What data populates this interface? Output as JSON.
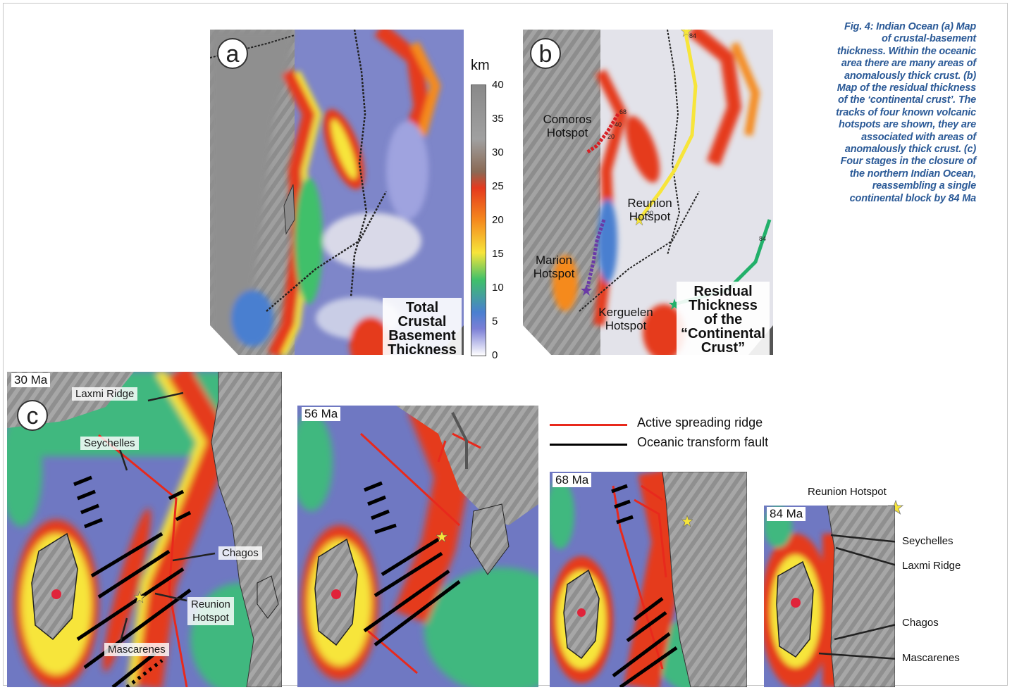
{
  "caption": "Fig. 4: Indian Ocean (a) Map of crustal-basement thickness. Within the oceanic area there are many areas of anomalously thick crust. (b) Map of the residual thickness of the ‘continental crust’. The tracks of four known volcanic hotspots are shown, they are associated with areas of anomalously thick crust. (c) Four stages in the closure of the northern Indian Ocean, reassembling a single continental block by 84 Ma",
  "panel_a": {
    "letter": "a",
    "label_lines": [
      "Total",
      "Crustal",
      "Basement",
      "Thickness"
    ]
  },
  "colorbar": {
    "unit": "km",
    "ticks": [
      "40",
      "35",
      "30",
      "25",
      "20",
      "15",
      "10",
      "5",
      "0"
    ],
    "colors": [
      "#8a8a8a",
      "#a0a0a0",
      "#8a6a55",
      "#e53a1e",
      "#f58a1e",
      "#f7e53a",
      "#3fc06a",
      "#4a7fd0",
      "#7b7fd6",
      "#ffffff"
    ]
  },
  "panel_b": {
    "letter": "b",
    "hotspots": {
      "comoros": [
        "Comoros",
        "Hotspot"
      ],
      "reunion": [
        "Reunion",
        "Hotspot"
      ],
      "marion": [
        "Marion",
        "Hotspot"
      ],
      "kerguelen": [
        "Kerguelen",
        "Hotspot"
      ]
    },
    "label_lines": [
      "Residual",
      "Thickness",
      "of the",
      "“Continental",
      "Crust”"
    ],
    "track_ticks": [
      "84",
      "68",
      "40",
      "20",
      "20",
      "84"
    ]
  },
  "panel_c": {
    "letter": "c",
    "stages": [
      "30 Ma",
      "56 Ma",
      "68 Ma",
      "84 Ma"
    ],
    "labels_30": {
      "laxmi": "Laxmi Ridge",
      "seychelles": "Seychelles",
      "chagos": "Chagos",
      "reunion": [
        "Reunion",
        "Hotspot"
      ],
      "mascarenes": "Mascarenes"
    },
    "labels_84": {
      "reunion": "Reunion Hotspot",
      "seychelles": "Seychelles",
      "laxmi": "Laxmi Ridge",
      "chagos": "Chagos",
      "mascarenes": "Mascarenes"
    }
  },
  "legend": {
    "items": [
      {
        "label": "Active spreading ridge",
        "color": "#e8291c"
      },
      {
        "label": "Oceanic transform fault",
        "color": "#000000"
      }
    ]
  }
}
